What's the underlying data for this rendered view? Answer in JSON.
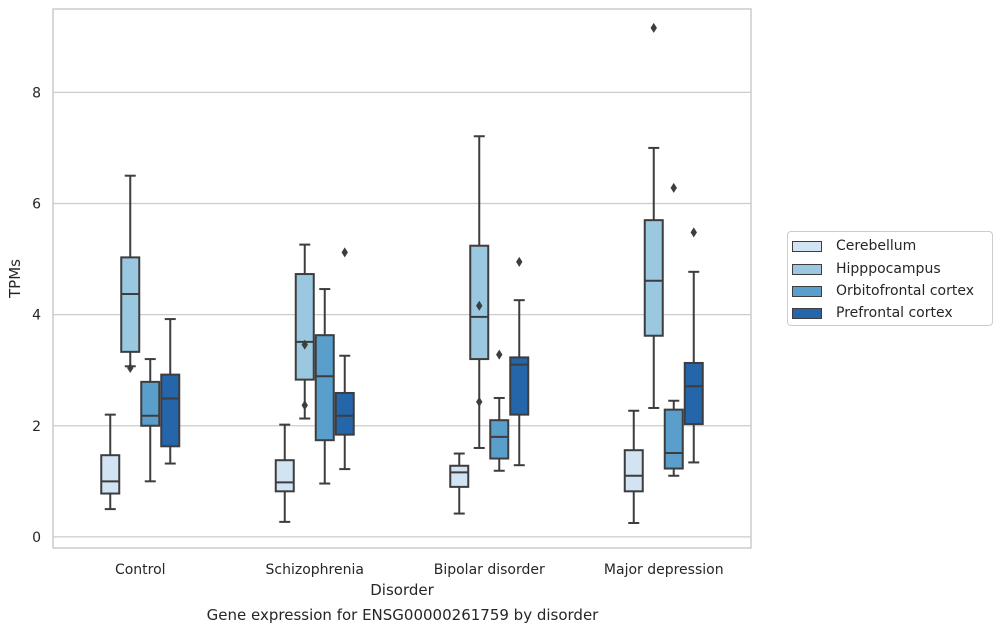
{
  "caption": "Gene expression for ENSG00000261759 by disorder",
  "chart_data": {
    "type": "box",
    "title": "",
    "xlabel": "Disorder",
    "ylabel": "TPMs",
    "categories": [
      "Control",
      "Schizophrenia",
      "Bipolar disorder",
      "Major depression"
    ],
    "ylim": [
      -0.2,
      9.5
    ],
    "yticks": [
      0,
      2,
      4,
      6,
      8
    ],
    "grid": "horizontal",
    "legend_position": "right",
    "series": [
      {
        "name": "Cerebellum",
        "color": "#d2e3f3",
        "boxes": [
          {
            "whislo": 0.5,
            "q1": 0.78,
            "med": 1.0,
            "q3": 1.47,
            "whishi": 2.2,
            "fliers": []
          },
          {
            "whislo": 0.27,
            "q1": 0.82,
            "med": 0.98,
            "q3": 1.38,
            "whishi": 2.02,
            "fliers": []
          },
          {
            "whislo": 0.42,
            "q1": 0.9,
            "med": 1.16,
            "q3": 1.28,
            "whishi": 1.5,
            "fliers": []
          },
          {
            "whislo": 0.25,
            "q1": 0.82,
            "med": 1.1,
            "q3": 1.56,
            "whishi": 2.27,
            "fliers": []
          }
        ]
      },
      {
        "name": "Hipppocampus",
        "color": "#9ac8e0",
        "boxes": [
          {
            "whislo": 3.07,
            "q1": 3.33,
            "med": 4.37,
            "q3": 5.03,
            "whishi": 6.5,
            "fliers": [
              3.04
            ]
          },
          {
            "whislo": 2.13,
            "q1": 2.83,
            "med": 3.51,
            "q3": 4.73,
            "whishi": 5.26,
            "fliers": [
              3.46,
              2.37
            ]
          },
          {
            "whislo": 1.6,
            "q1": 3.2,
            "med": 3.96,
            "q3": 5.24,
            "whishi": 7.21,
            "fliers": [
              4.16,
              2.43
            ]
          },
          {
            "whislo": 2.32,
            "q1": 3.62,
            "med": 4.61,
            "q3": 5.7,
            "whishi": 7.0,
            "fliers": [
              9.16
            ]
          }
        ]
      },
      {
        "name": "Orbitofrontal cortex",
        "color": "#5a9ecb",
        "boxes": [
          {
            "whislo": 1.0,
            "q1": 2.0,
            "med": 2.18,
            "q3": 2.79,
            "whishi": 3.2,
            "fliers": []
          },
          {
            "whislo": 0.96,
            "q1": 1.74,
            "med": 2.89,
            "q3": 3.63,
            "whishi": 4.46,
            "fliers": []
          },
          {
            "whislo": 1.19,
            "q1": 1.41,
            "med": 1.8,
            "q3": 2.1,
            "whishi": 2.5,
            "fliers": [
              3.28
            ]
          },
          {
            "whislo": 1.1,
            "q1": 1.23,
            "med": 1.51,
            "q3": 2.29,
            "whishi": 2.45,
            "fliers": [
              6.28
            ]
          }
        ]
      },
      {
        "name": "Prefrontal cortex",
        "color": "#2565a9",
        "boxes": [
          {
            "whislo": 1.32,
            "q1": 1.63,
            "med": 2.49,
            "q3": 2.92,
            "whishi": 3.92,
            "fliers": []
          },
          {
            "whislo": 1.22,
            "q1": 1.84,
            "med": 2.18,
            "q3": 2.59,
            "whishi": 3.26,
            "fliers": [
              5.12
            ]
          },
          {
            "whislo": 1.29,
            "q1": 2.2,
            "med": 3.1,
            "q3": 3.23,
            "whishi": 4.26,
            "fliers": [
              4.95
            ]
          },
          {
            "whislo": 1.34,
            "q1": 2.03,
            "med": 2.71,
            "q3": 3.13,
            "whishi": 4.77,
            "fliers": [
              5.48
            ]
          }
        ]
      }
    ]
  }
}
